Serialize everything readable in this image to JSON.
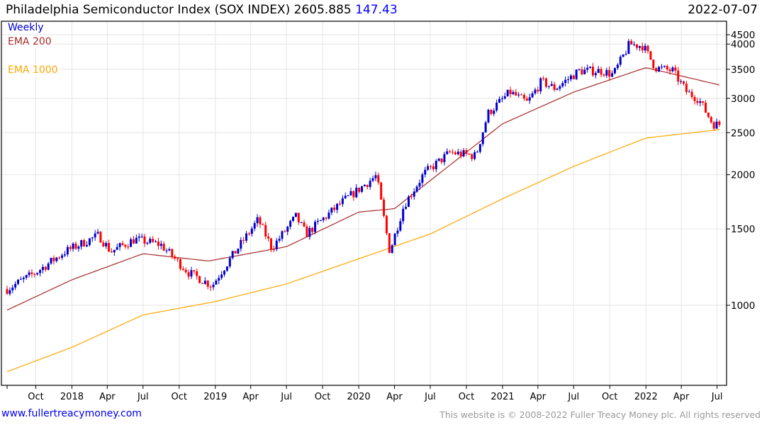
{
  "header": {
    "title": "Philadelphia Semiconductor Index (SOX INDEX)",
    "price": "2605.885",
    "change": "147.43",
    "date": "2022-07-07"
  },
  "footer": {
    "link": "www.fullertreacymoney.com",
    "copyright": "This website is © 2008-2022 Fuller Treacy Money plc. All rights reserved"
  },
  "chart_data": {
    "type": "candlestick",
    "title": "Philadelphia Semiconductor Index (SOX INDEX)",
    "frequency": "Weekly",
    "yscale": "log",
    "ylim": [
      654,
      4510
    ],
    "y_ticks": [
      "1000",
      "1500",
      "2000",
      "2500",
      "3000",
      "3500",
      "4000",
      "4500"
    ],
    "y_tick_values": [
      1000,
      1500,
      2000,
      2500,
      3000,
      3500,
      4000,
      4500
    ],
    "x_ticks": [
      {
        "label": "Oct",
        "date": "2017-10-01"
      },
      {
        "label": "2018",
        "date": "2018-01-01"
      },
      {
        "label": "Apr",
        "date": "2018-04-01"
      },
      {
        "label": "Jul",
        "date": "2018-07-01"
      },
      {
        "label": "Oct",
        "date": "2018-10-01"
      },
      {
        "label": "2019",
        "date": "2019-01-01"
      },
      {
        "label": "Apr",
        "date": "2019-04-01"
      },
      {
        "label": "Jul",
        "date": "2019-07-01"
      },
      {
        "label": "Oct",
        "date": "2019-10-01"
      },
      {
        "label": "2020",
        "date": "2020-01-01"
      },
      {
        "label": "Apr",
        "date": "2020-04-01"
      },
      {
        "label": "Jul",
        "date": "2020-07-01"
      },
      {
        "label": "Oct",
        "date": "2020-10-01"
      },
      {
        "label": "2021",
        "date": "2021-01-01"
      },
      {
        "label": "Apr",
        "date": "2021-04-01"
      },
      {
        "label": "Jul",
        "date": "2021-07-01"
      },
      {
        "label": "Oct",
        "date": "2021-10-01"
      },
      {
        "label": "2022",
        "date": "2022-01-01"
      },
      {
        "label": "Apr",
        "date": "2022-04-01"
      },
      {
        "label": "Jul",
        "date": "2022-07-01"
      }
    ],
    "start_date": "2017-07-20",
    "end_date": "2022-07-07",
    "close_anchors": [
      [
        "2017-07-20",
        1090
      ],
      [
        "2017-10-01",
        1190
      ],
      [
        "2017-12-15",
        1330
      ],
      [
        "2018-01-20",
        1380
      ],
      [
        "2018-03-10",
        1450
      ],
      [
        "2018-04-10",
        1330
      ],
      [
        "2018-06-10",
        1420
      ],
      [
        "2018-08-15",
        1380
      ],
      [
        "2018-10-25",
        1190
      ],
      [
        "2018-12-24",
        1110
      ],
      [
        "2019-01-20",
        1210
      ],
      [
        "2019-04-20",
        1575
      ],
      [
        "2019-05-25",
        1355
      ],
      [
        "2019-07-25",
        1600
      ],
      [
        "2019-08-20",
        1460
      ],
      [
        "2019-11-20",
        1730
      ],
      [
        "2020-02-15",
        1990
      ],
      [
        "2020-03-20",
        1330
      ],
      [
        "2020-04-25",
        1700
      ],
      [
        "2020-06-15",
        2010
      ],
      [
        "2020-08-20",
        2250
      ],
      [
        "2020-10-25",
        2210
      ],
      [
        "2020-11-25",
        2770
      ],
      [
        "2021-01-20",
        3100
      ],
      [
        "2021-03-05",
        2930
      ],
      [
        "2021-04-10",
        3280
      ],
      [
        "2021-05-15",
        3160
      ],
      [
        "2021-07-15",
        3470
      ],
      [
        "2021-09-10",
        3470
      ],
      [
        "2021-10-10",
        3400
      ],
      [
        "2021-11-20",
        4000
      ],
      [
        "2021-12-25",
        3960
      ],
      [
        "2022-01-25",
        3530
      ],
      [
        "2022-03-10",
        3470
      ],
      [
        "2022-04-15",
        3100
      ],
      [
        "2022-05-15",
        2990
      ],
      [
        "2022-06-20",
        2620
      ],
      [
        "2022-07-07",
        2606
      ]
    ],
    "series": [
      {
        "name": "Weekly",
        "color": "#0000cc",
        "down_color": "#ff0000"
      },
      {
        "name": "EMA 200",
        "color": "#a52a2a",
        "points": [
          [
            "2017-07-20",
            975
          ],
          [
            "2018-01-01",
            1145
          ],
          [
            "2018-07-01",
            1315
          ],
          [
            "2018-12-15",
            1265
          ],
          [
            "2019-07-01",
            1365
          ],
          [
            "2020-01-01",
            1640
          ],
          [
            "2020-04-01",
            1670
          ],
          [
            "2021-01-01",
            2620
          ],
          [
            "2021-07-01",
            3100
          ],
          [
            "2022-01-01",
            3530
          ],
          [
            "2022-07-07",
            3220
          ]
        ]
      },
      {
        "name": "EMA 1000",
        "color": "#ffa500",
        "points": [
          [
            "2017-07-20",
            703
          ],
          [
            "2018-01-01",
            800
          ],
          [
            "2018-07-01",
            950
          ],
          [
            "2019-01-01",
            1020
          ],
          [
            "2019-07-01",
            1120
          ],
          [
            "2020-01-01",
            1280
          ],
          [
            "2020-07-01",
            1460
          ],
          [
            "2021-01-01",
            1760
          ],
          [
            "2021-07-01",
            2090
          ],
          [
            "2022-01-01",
            2430
          ],
          [
            "2022-07-07",
            2540
          ]
        ]
      }
    ],
    "legend": [
      "Weekly",
      "EMA 200",
      "EMA 1000"
    ],
    "legend_position": "top-left",
    "grid": true
  }
}
